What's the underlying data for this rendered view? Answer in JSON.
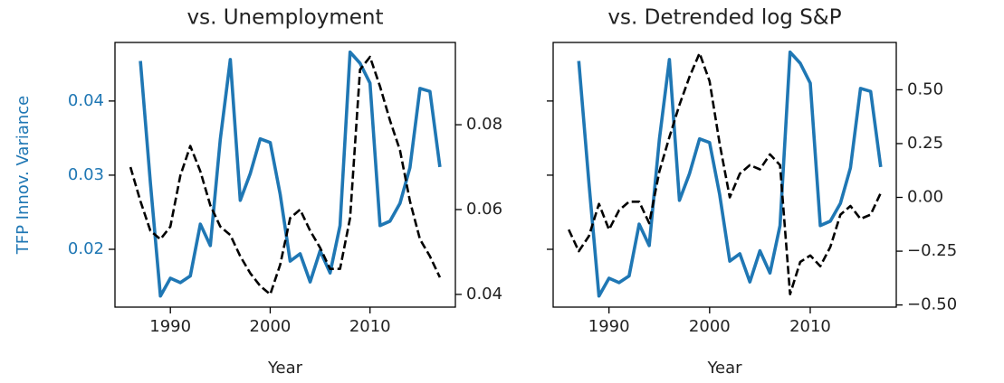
{
  "chart_data": [
    {
      "type": "line",
      "title": "vs. Unemployment",
      "xlabel": "Year",
      "ylabel": "TFP Innov. Variance",
      "ylabel_color": "#1f77b4",
      "xlim": [
        1984.45,
        2018.55
      ],
      "xticks": [
        1990,
        2000,
        2010
      ],
      "ylim": [
        0.0122,
        0.0479
      ],
      "yticks": [
        0.02,
        0.03,
        0.04
      ],
      "show_ytick_labels": true,
      "y2lim": [
        0.037,
        0.0994
      ],
      "y2ticks": [
        0.04,
        0.06,
        0.08
      ],
      "series": [
        {
          "color": "#1f77b4",
          "dash": false,
          "axis": "y",
          "x": [
            1987,
            1988,
            1989,
            1990,
            1991,
            1992,
            1993,
            1994,
            1995,
            1996,
            1997,
            1998,
            1999,
            2000,
            2001,
            2002,
            2003,
            2004,
            2005,
            2006,
            2007,
            2008,
            2009,
            2010,
            2011,
            2012,
            2013,
            2014,
            2015,
            2016,
            2017
          ],
          "values": [
            0.0454,
            0.029,
            0.0137,
            0.0161,
            0.0155,
            0.0164,
            0.0234,
            0.0205,
            0.0348,
            0.0456,
            0.0266,
            0.0302,
            0.0349,
            0.0344,
            0.0274,
            0.0184,
            0.0194,
            0.0156,
            0.0198,
            0.0168,
            0.0232,
            0.0466,
            0.0451,
            0.0424,
            0.0232,
            0.0238,
            0.0262,
            0.031,
            0.0417,
            0.0413,
            0.0311
          ]
        },
        {
          "color": "#000000",
          "dash": true,
          "axis": "y2",
          "x": [
            1986,
            1987,
            1988,
            1989,
            1990,
            1991,
            1992,
            1993,
            1994,
            1995,
            1996,
            1997,
            1998,
            1999,
            2000,
            2001,
            2002,
            2003,
            2004,
            2005,
            2006,
            2007,
            2008,
            2009,
            2010,
            2011,
            2012,
            2013,
            2014,
            2015,
            2016,
            2017
          ],
          "values": [
            0.07,
            0.062,
            0.055,
            0.053,
            0.056,
            0.068,
            0.075,
            0.069,
            0.061,
            0.056,
            0.054,
            0.049,
            0.045,
            0.042,
            0.04,
            0.047,
            0.058,
            0.06,
            0.055,
            0.051,
            0.046,
            0.046,
            0.058,
            0.093,
            0.096,
            0.089,
            0.081,
            0.074,
            0.062,
            0.053,
            0.049,
            0.044
          ]
        }
      ]
    },
    {
      "type": "line",
      "title": "vs. Detrended log S&P",
      "xlabel": "Year",
      "xlim": [
        1984.45,
        2018.55
      ],
      "xticks": [
        1990,
        2000,
        2010
      ],
      "ylim": [
        0.0122,
        0.0479
      ],
      "yticks": [
        0.02,
        0.03,
        0.04
      ],
      "show_ytick_labels": false,
      "y2lim": [
        -0.51,
        0.72
      ],
      "y2ticks": [
        {
          "value": -0.5,
          "label": "−0.50"
        },
        {
          "value": -0.25,
          "label": "−0.25"
        },
        {
          "value": 0,
          "label": "0.00"
        },
        {
          "value": 0.25,
          "label": "0.25"
        },
        {
          "value": 0.5,
          "label": "0.50"
        }
      ],
      "series": [
        {
          "color": "#1f77b4",
          "dash": false,
          "axis": "y",
          "x": [
            1987,
            1988,
            1989,
            1990,
            1991,
            1992,
            1993,
            1994,
            1995,
            1996,
            1997,
            1998,
            1999,
            2000,
            2001,
            2002,
            2003,
            2004,
            2005,
            2006,
            2007,
            2008,
            2009,
            2010,
            2011,
            2012,
            2013,
            2014,
            2015,
            2016,
            2017
          ],
          "values": [
            0.0454,
            0.029,
            0.0137,
            0.0161,
            0.0155,
            0.0164,
            0.0234,
            0.0205,
            0.0348,
            0.0456,
            0.0266,
            0.0302,
            0.0349,
            0.0344,
            0.0274,
            0.0184,
            0.0194,
            0.0156,
            0.0198,
            0.0168,
            0.0232,
            0.0466,
            0.0451,
            0.0424,
            0.0232,
            0.0238,
            0.0262,
            0.031,
            0.0417,
            0.0413,
            0.0311
          ]
        },
        {
          "color": "#000000",
          "dash": true,
          "axis": "y2",
          "x": [
            1986,
            1987,
            1988,
            1989,
            1990,
            1991,
            1992,
            1993,
            1994,
            1995,
            1996,
            1997,
            1998,
            1999,
            2000,
            2001,
            2002,
            2003,
            2004,
            2005,
            2006,
            2007,
            2008,
            2009,
            2010,
            2011,
            2012,
            2013,
            2014,
            2015,
            2016,
            2017
          ],
          "values": [
            -0.15,
            -0.25,
            -0.18,
            -0.03,
            -0.15,
            -0.06,
            -0.02,
            -0.02,
            -0.12,
            0.12,
            0.28,
            0.43,
            0.56,
            0.67,
            0.54,
            0.25,
            0.0,
            0.11,
            0.15,
            0.13,
            0.2,
            0.15,
            -0.45,
            -0.3,
            -0.27,
            -0.32,
            -0.23,
            -0.08,
            -0.04,
            -0.1,
            -0.08,
            0.02
          ]
        }
      ]
    }
  ]
}
